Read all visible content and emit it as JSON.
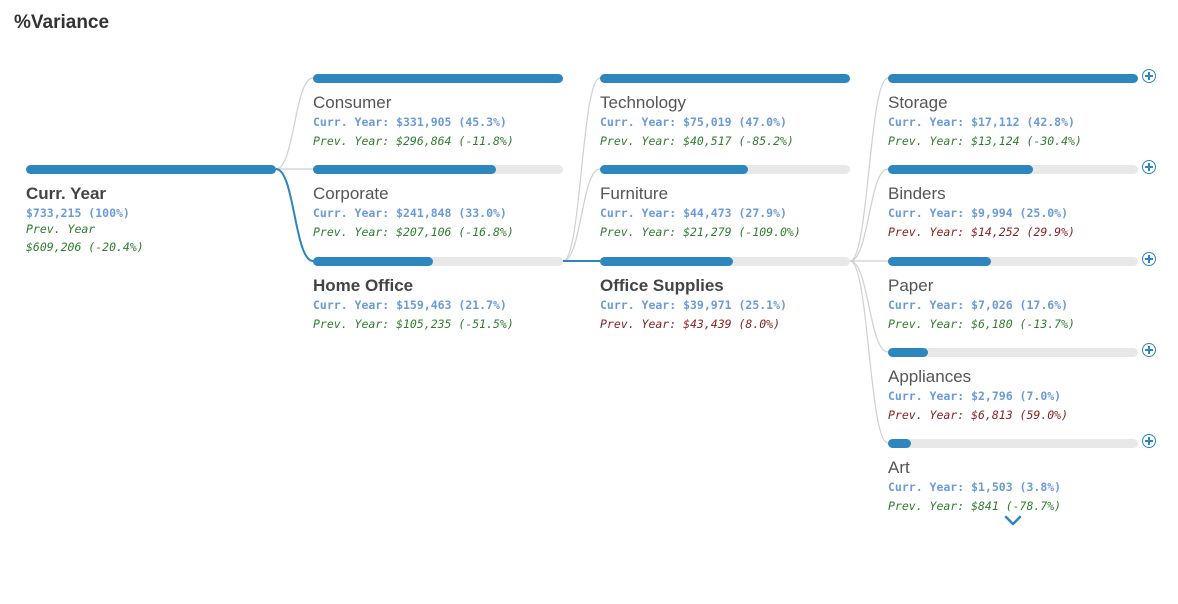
{
  "title": "%Variance",
  "accent_color": "#2d86bd",
  "root": {
    "name": "Curr. Year",
    "curr": "$733,215 (100%)",
    "prev_label": "Prev. Year",
    "prev_value": "$609,206 (-20.4%)",
    "share": 1.0
  },
  "segments": [
    {
      "name": "Consumer",
      "curr": "Curr. Year: $331,905 (45.3%)",
      "prev": "Prev. Year: $296,864 (-11.8%)",
      "share": 1.0,
      "selected": false,
      "trend": "pos"
    },
    {
      "name": "Corporate",
      "curr": "Curr. Year: $241,848 (33.0%)",
      "prev": "Prev. Year: $207,106 (-16.8%)",
      "share": 0.73,
      "selected": false,
      "trend": "pos"
    },
    {
      "name": "Home Office",
      "curr": "Curr. Year: $159,463 (21.7%)",
      "prev": "Prev. Year: $105,235 (-51.5%)",
      "share": 0.48,
      "selected": true,
      "trend": "pos"
    }
  ],
  "categories": [
    {
      "name": "Technology",
      "curr": "Curr. Year: $75,019 (47.0%)",
      "prev": "Prev. Year: $40,517 (-85.2%)",
      "share": 1.0,
      "selected": false,
      "trend": "pos"
    },
    {
      "name": "Furniture",
      "curr": "Curr. Year: $44,473 (27.9%)",
      "prev": "Prev. Year: $21,279 (-109.0%)",
      "share": 0.59,
      "selected": false,
      "trend": "pos"
    },
    {
      "name": "Office Supplies",
      "curr": "Curr. Year: $39,971 (25.1%)",
      "prev": "Prev. Year: $43,439 (8.0%)",
      "share": 0.53,
      "selected": true,
      "trend": "neg"
    }
  ],
  "subcategories": [
    {
      "name": "Storage",
      "curr": "Curr. Year: $17,112 (42.8%)",
      "prev": "Prev. Year: $13,124 (-30.4%)",
      "share": 1.0,
      "trend": "pos"
    },
    {
      "name": "Binders",
      "curr": "Curr. Year: $9,994 (25.0%)",
      "prev": "Prev. Year: $14,252 (29.9%)",
      "share": 0.58,
      "trend": "neg"
    },
    {
      "name": "Paper",
      "curr": "Curr. Year: $7,026 (17.6%)",
      "prev": "Prev. Year: $6,180 (-13.7%)",
      "share": 0.41,
      "trend": "pos"
    },
    {
      "name": "Appliances",
      "curr": "Curr. Year: $2,796 (7.0%)",
      "prev": "Prev. Year: $6,813 (59.0%)",
      "share": 0.16,
      "trend": "neg"
    },
    {
      "name": "Art",
      "curr": "Curr. Year: $1,503 (3.8%)",
      "prev": "Prev. Year: $841 (-78.7%)",
      "share": 0.09,
      "trend": "pos"
    }
  ]
}
